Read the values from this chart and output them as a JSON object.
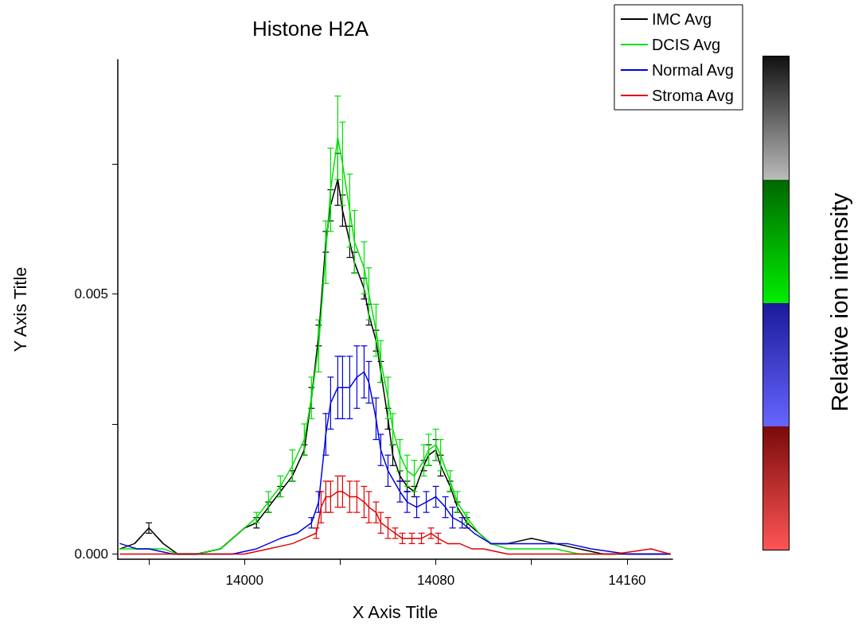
{
  "chart_data": {
    "type": "line",
    "title": "Histone H2A",
    "xlabel": "X Axis Title",
    "ylabel": "Y Axis Title",
    "clabel": "Relative ion intensity",
    "xlim": [
      13947,
      14179
    ],
    "xticks": [
      {
        "value": 13960,
        "label": null
      },
      14000,
      {
        "value": 14040,
        "label": null
      },
      14080,
      {
        "value": 14120,
        "label": null
      },
      14160
    ],
    "ylim": [
      -0.0001,
      0.0095
    ],
    "yticks": [
      {
        "value": 0,
        "label": "0.000"
      },
      {
        "value": 0.0025,
        "label": null
      },
      {
        "value": 0.005,
        "label": "0.005"
      },
      {
        "value": 0.0075,
        "label": null
      }
    ],
    "grid": false,
    "legend": "top right",
    "marker": "none",
    "line_style": "solid",
    "series": [
      {
        "name": "IMC Avg",
        "color": "#000000",
        "x": [
          13948,
          13954,
          13960,
          13966,
          13972,
          13980,
          13990,
          14000,
          14005,
          14010,
          14015,
          14020,
          14025,
          14028,
          14031,
          14034,
          14036,
          14039,
          14041,
          14044,
          14046,
          14050,
          14052,
          14055,
          14057,
          14060,
          14062,
          14065,
          14068,
          14071,
          14075,
          14077,
          14080,
          14082,
          14086,
          14089,
          14093,
          14098,
          14103,
          14110,
          14120,
          14130,
          14140,
          14150,
          14160,
          14170,
          14178
        ],
        "values": [
          0.0001,
          0.0002,
          0.0005,
          0.0002,
          0,
          0,
          0.0001,
          0.0005,
          0.0006,
          0.0009,
          0.0012,
          0.0015,
          0.002,
          0.003,
          0.0042,
          0.006,
          0.0067,
          0.0072,
          0.0066,
          0.006,
          0.0056,
          0.0051,
          0.0046,
          0.0041,
          0.0035,
          0.0026,
          0.0019,
          0.0015,
          0.0013,
          0.0012,
          0.0017,
          0.0019,
          0.002,
          0.0017,
          0.0013,
          0.0009,
          0.0006,
          0.0004,
          0.0002,
          0.0002,
          0.0003,
          0.0002,
          0.0001,
          0,
          0,
          0,
          0
        ],
        "errors": [
          null,
          null,
          0.0001,
          null,
          null,
          null,
          null,
          null,
          0.0001,
          0.0001,
          0.0001,
          0.0001,
          0.0001,
          0.0002,
          0.0002,
          0.0002,
          0.0003,
          0.0005,
          0.0003,
          0.0003,
          0.0002,
          0.0002,
          0.0002,
          0.0002,
          0.0002,
          0.0002,
          0.0002,
          0.0001,
          0.0001,
          0.0001,
          0.0001,
          0.0002,
          0.0002,
          0.0002,
          0.0001,
          0.0001,
          0.0001,
          null,
          null,
          null,
          null,
          null,
          null,
          null,
          null,
          null,
          null
        ]
      },
      {
        "name": "DCIS Avg",
        "color": "#00e000",
        "x": [
          13948,
          13954,
          13960,
          13966,
          13972,
          13980,
          13990,
          14000,
          14005,
          14010,
          14015,
          14020,
          14025,
          14028,
          14031,
          14034,
          14036,
          14039,
          14041,
          14044,
          14046,
          14050,
          14052,
          14055,
          14057,
          14060,
          14062,
          14065,
          14068,
          14071,
          14075,
          14077,
          14080,
          14082,
          14086,
          14089,
          14093,
          14098,
          14103,
          14110,
          14120,
          14130,
          14140,
          14150
        ],
        "values": [
          0.0001,
          0.0001,
          0.0001,
          0.0001,
          0,
          0,
          0.0001,
          0.0005,
          0.0007,
          0.001,
          0.0013,
          0.0017,
          0.0022,
          0.003,
          0.004,
          0.0058,
          0.007,
          0.008,
          0.0075,
          0.0066,
          0.006,
          0.0055,
          0.005,
          0.0043,
          0.0037,
          0.003,
          0.0024,
          0.0019,
          0.0016,
          0.0015,
          0.0018,
          0.002,
          0.0021,
          0.0019,
          0.0014,
          0.001,
          0.0007,
          0.0004,
          0.0002,
          0.0001,
          0.0001,
          0.0001,
          0,
          0
        ],
        "errors": [
          null,
          null,
          null,
          null,
          null,
          null,
          null,
          null,
          0.0001,
          0.0002,
          0.0002,
          0.0003,
          0.0003,
          0.0004,
          0.0005,
          0.0006,
          0.0008,
          0.0008,
          0.0008,
          0.0007,
          0.0006,
          0.0005,
          0.0005,
          0.0005,
          0.0004,
          0.0004,
          0.0003,
          0.0003,
          0.0003,
          0.0003,
          0.0003,
          0.0003,
          0.0003,
          0.0003,
          0.0002,
          0.0002,
          0.0001,
          null,
          null,
          null,
          null,
          null,
          null,
          null
        ]
      },
      {
        "name": "Normal Avg",
        "color": "#0000e0",
        "x": [
          13948,
          13955,
          13960,
          13970,
          13985,
          13995,
          14005,
          14015,
          14022,
          14028,
          14031,
          14034,
          14036,
          14039,
          14041,
          14044,
          14047,
          14050,
          14052,
          14055,
          14057,
          14060,
          14065,
          14068,
          14072,
          14076,
          14080,
          14084,
          14087,
          14091,
          14096,
          14103,
          14110,
          14125,
          14135,
          14145,
          14160,
          14178
        ],
        "values": [
          0.0002,
          0.0001,
          0.0001,
          0,
          0,
          0,
          0.0001,
          0.0003,
          0.0004,
          0.0006,
          0.001,
          0.0023,
          0.0029,
          0.0032,
          0.0032,
          0.0032,
          0.0034,
          0.0035,
          0.0033,
          0.0026,
          0.002,
          0.0016,
          0.0012,
          0.001,
          0.0009,
          0.001,
          0.0011,
          0.0009,
          0.0007,
          0.0006,
          0.0004,
          0.0002,
          0.0002,
          0.0002,
          0.0002,
          0.0001,
          0,
          0
        ],
        "errors": [
          null,
          null,
          null,
          null,
          null,
          null,
          null,
          null,
          null,
          0.0001,
          0.0002,
          0.0004,
          0.0005,
          0.0006,
          0.0006,
          0.0006,
          0.0006,
          0.0005,
          0.0004,
          0.0004,
          0.0003,
          0.0003,
          0.0002,
          0.0002,
          0.0002,
          0.0002,
          0.0002,
          0.0002,
          0.0002,
          0.0001,
          null,
          null,
          null,
          null,
          null,
          null,
          null,
          null
        ]
      },
      {
        "name": "Stroma Avg",
        "color": "#e00000",
        "x": [
          13948,
          13960,
          13975,
          13990,
          14000,
          14010,
          14020,
          14025,
          14030,
          14032,
          14034,
          14036,
          14039,
          14041,
          14044,
          14047,
          14050,
          14052,
          14055,
          14057,
          14060,
          14063,
          14066,
          14070,
          14074,
          14078,
          14081,
          14085,
          14090,
          14095,
          14100,
          14110,
          14125,
          14140,
          14155,
          14170,
          14178
        ],
        "values": [
          0,
          0,
          0,
          0,
          0,
          0.0001,
          0.0002,
          0.0003,
          0.0004,
          0.0009,
          0.0011,
          0.0011,
          0.0012,
          0.0012,
          0.0011,
          0.0011,
          0.001,
          0.0009,
          0.0008,
          0.0006,
          0.0005,
          0.0004,
          0.0003,
          0.0003,
          0.0003,
          0.0004,
          0.0003,
          0.0002,
          0.0002,
          0.0001,
          0.0001,
          0,
          0,
          0,
          0,
          0.0001,
          0
        ],
        "errors": [
          null,
          null,
          null,
          null,
          null,
          null,
          null,
          null,
          0.0001,
          0.0003,
          0.0003,
          0.0003,
          0.0003,
          0.0003,
          0.0003,
          0.0003,
          0.0003,
          0.0003,
          0.0002,
          0.0002,
          0.0002,
          0.0001,
          0.0001,
          0.0001,
          0.0001,
          0.0001,
          0.0001,
          null,
          null,
          null,
          null,
          null,
          null,
          null,
          null,
          null,
          null
        ]
      }
    ]
  }
}
